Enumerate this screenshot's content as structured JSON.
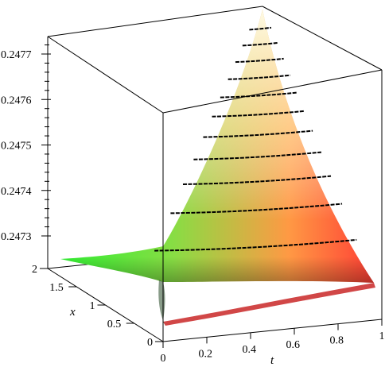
{
  "chart_data": {
    "type": "surface3d",
    "title": "",
    "axes": {
      "t": {
        "label": "t",
        "range": [
          0,
          1
        ],
        "ticks": [
          "0",
          "0.2",
          "0.4",
          "0.6",
          "0.8",
          "1"
        ]
      },
      "x": {
        "label": "x",
        "range": [
          0,
          2
        ],
        "ticks": [
          "0",
          "0.5",
          "1",
          "1.5",
          "2"
        ]
      },
      "z": {
        "label": "",
        "range": [
          0.24722,
          0.24779
        ],
        "ticks": [
          "0.2473",
          "0.2474",
          "0.2475",
          "0.2476",
          "0.2477"
        ]
      }
    },
    "corner_values": [
      {
        "t": 0,
        "x": 2,
        "z": 0.24725
      },
      {
        "t": 0,
        "x": 0,
        "z": 0.24722
      },
      {
        "t": 1,
        "x": 0,
        "z": 0.24722
      },
      {
        "t": 1,
        "x": 2,
        "z": 0.24779
      }
    ],
    "contour_levels": [
      0.24725,
      0.2473,
      0.24735,
      0.2474,
      0.24745,
      0.2475,
      0.24755,
      0.2476,
      0.24765,
      0.2477,
      0.24775
    ],
    "colors": {
      "low": "#444444",
      "green": "#22ee22",
      "orange": "#ffa64d",
      "red": "#ff3030",
      "high": "#fffbe8"
    }
  }
}
